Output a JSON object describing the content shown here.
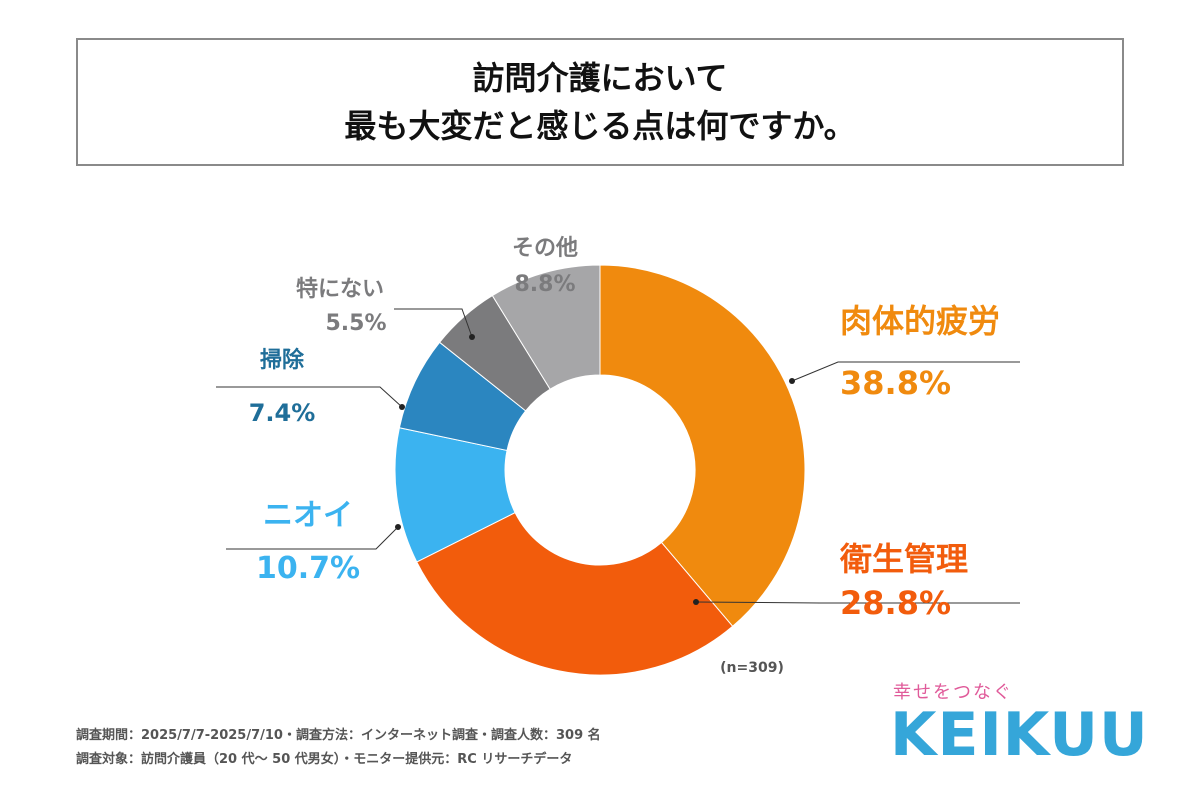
{
  "header": {
    "title_line1": "訪問介護において",
    "title_line2": "最も大変だと感じる点は何ですか。"
  },
  "chart_data": {
    "type": "pie",
    "subtype": "donut",
    "sample_note": "(n=309)",
    "slices": [
      {
        "label": "肉体的疲労",
        "value": 38.8,
        "display": "38.8%",
        "color": "#F08A0E",
        "label_color": "#F08A0E"
      },
      {
        "label": "衛生管理",
        "value": 28.8,
        "display": "28.8%",
        "color": "#F25C0C",
        "label_color": "#F25C0C"
      },
      {
        "label": "ニオイ",
        "value": 10.7,
        "display": "10.7%",
        "color": "#3BB3F0",
        "label_color": "#3BB3F0"
      },
      {
        "label": "掃除",
        "value": 7.4,
        "display": "7.4%",
        "color": "#2B86C0",
        "label_color": "#1F6E99"
      },
      {
        "label": "特にない",
        "value": 5.5,
        "display": "5.5%",
        "color": "#7B7B7D",
        "label_color": "#7B7B7D"
      },
      {
        "label": "その他",
        "value": 8.8,
        "display": "8.8%",
        "color": "#A6A6A8",
        "label_color": "#7B7B7D"
      }
    ]
  },
  "footer": {
    "note1": "調査期間：2025/7/7-2025/7/10・調査方法：インターネット調査・調査人数：309 名",
    "note2": "調査対象：訪問介護員（20 代～ 50 代男女）・モニター提供元：RC リサーチデータ"
  },
  "brand": {
    "tagline": "幸せをつなぐ",
    "name": "KEIKUU",
    "color": "#35A6D9",
    "tagline_color": "#E05B9A"
  }
}
